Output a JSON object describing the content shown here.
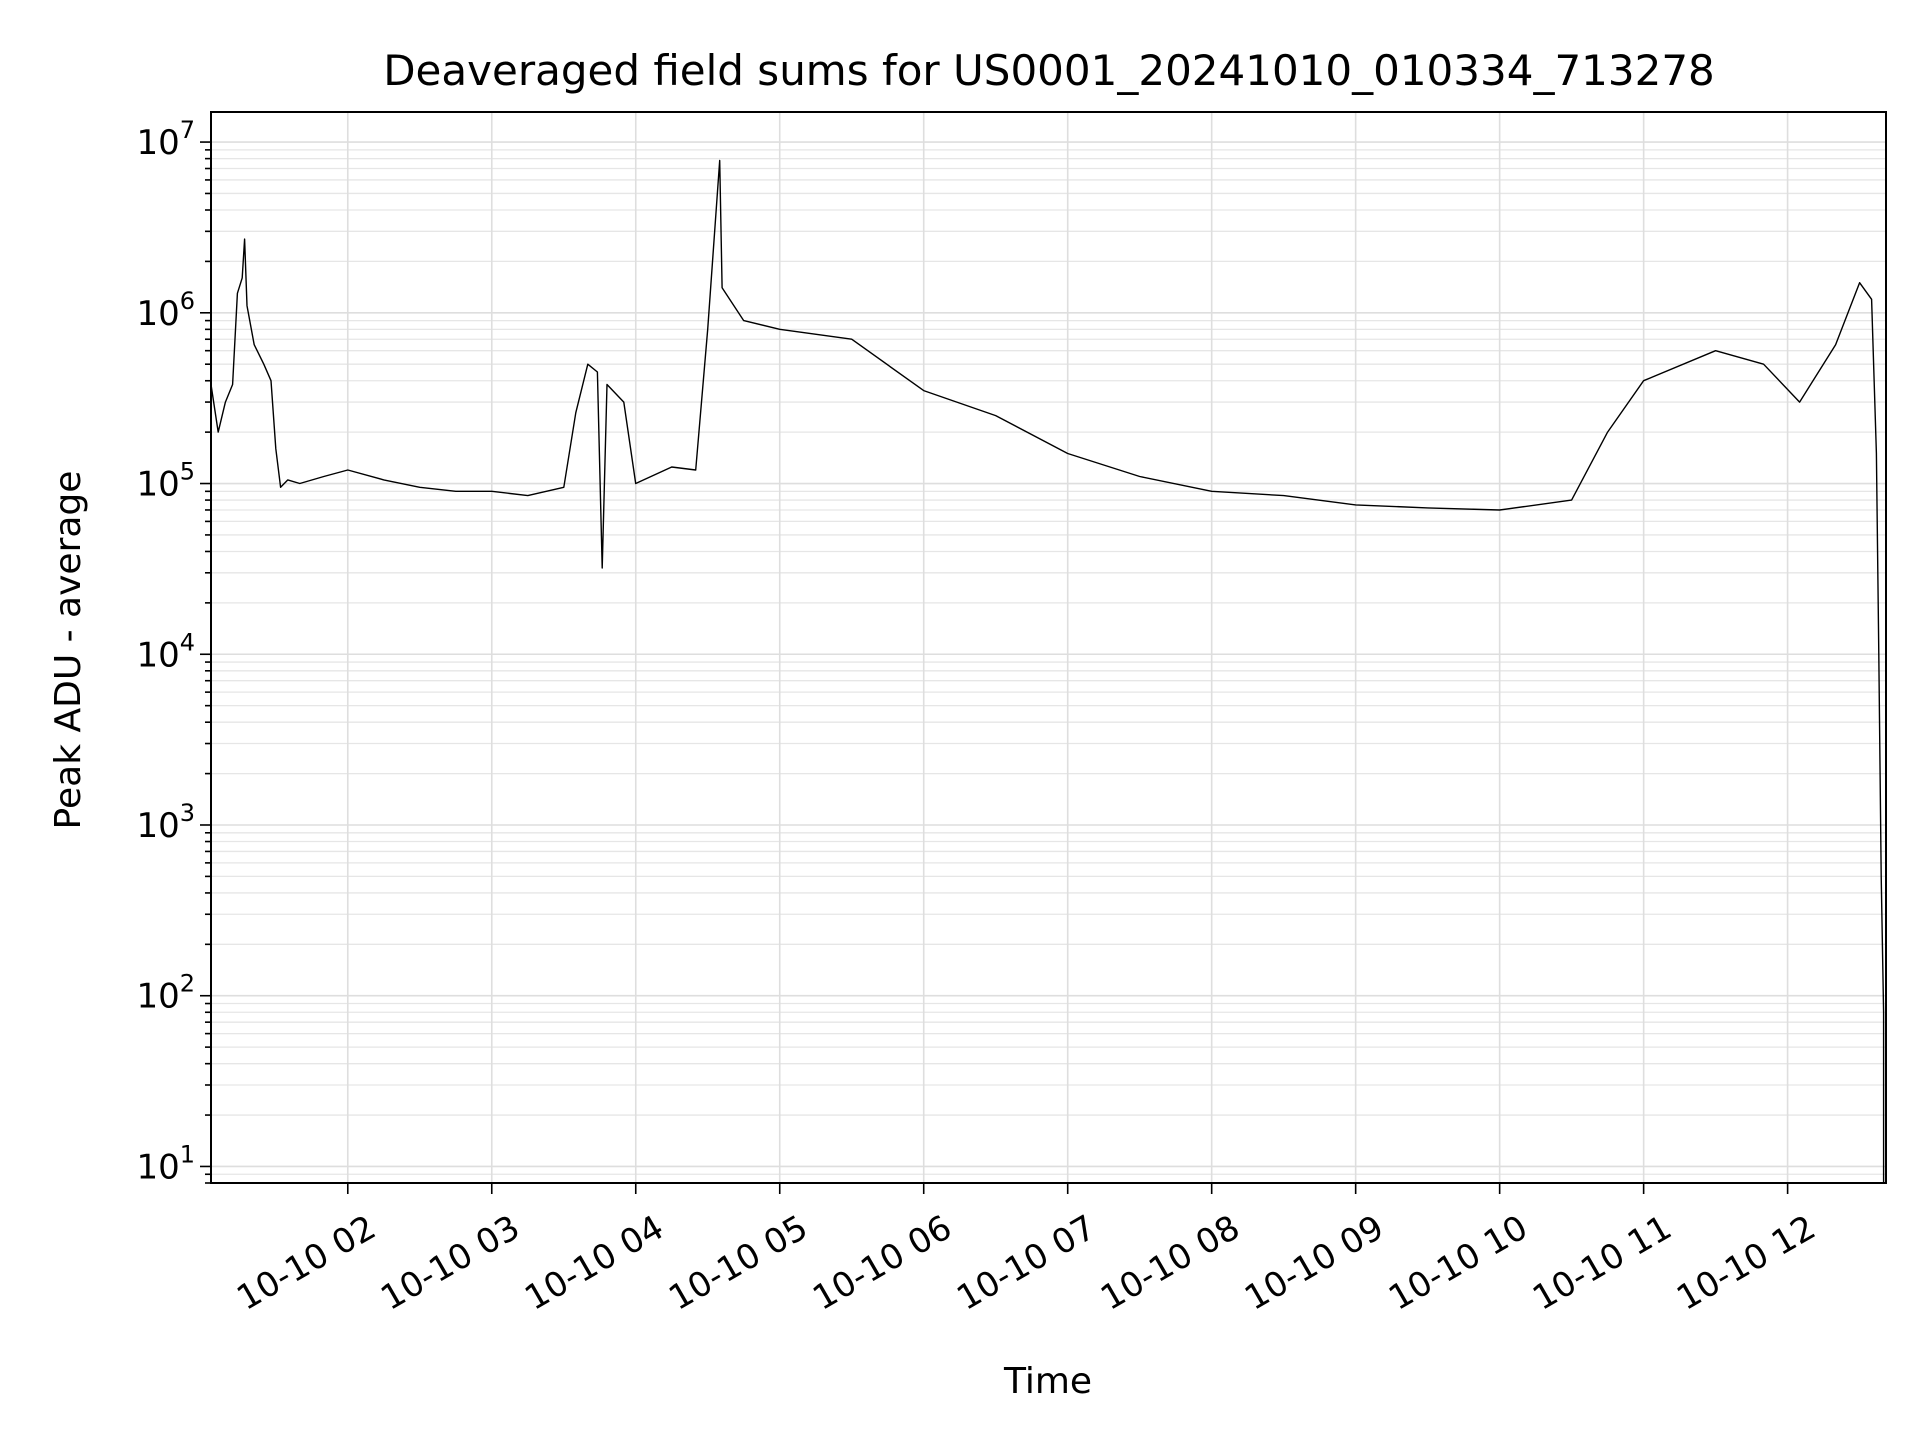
{
  "chart_data": {
    "type": "line",
    "title": "Deaveraged field sums for US0001_20241010_010334_713278",
    "xlabel": "Time",
    "ylabel": "Peak ADU - average",
    "yscale": "log",
    "xlim": [
      "2024-10-10 01:03",
      "2024-10-10 12:41"
    ],
    "ylim": [
      8,
      15000000
    ],
    "grid": true,
    "line_color": "#000000",
    "x_ticks": [
      {
        "label": "10-10 02",
        "value": "2024-10-10 02:00"
      },
      {
        "label": "10-10 03",
        "value": "2024-10-10 03:00"
      },
      {
        "label": "10-10 04",
        "value": "2024-10-10 04:00"
      },
      {
        "label": "10-10 05",
        "value": "2024-10-10 05:00"
      },
      {
        "label": "10-10 06",
        "value": "2024-10-10 06:00"
      },
      {
        "label": "10-10 07",
        "value": "2024-10-10 07:00"
      },
      {
        "label": "10-10 08",
        "value": "2024-10-10 08:00"
      },
      {
        "label": "10-10 09",
        "value": "2024-10-10 09:00"
      },
      {
        "label": "10-10 10",
        "value": "2024-10-10 10:00"
      },
      {
        "label": "10-10 11",
        "value": "2024-10-10 11:00"
      },
      {
        "label": "10-10 12",
        "value": "2024-10-10 12:00"
      }
    ],
    "y_ticks": [
      {
        "base": "10",
        "exp": "1",
        "value": 10
      },
      {
        "base": "10",
        "exp": "2",
        "value": 100
      },
      {
        "base": "10",
        "exp": "3",
        "value": 1000
      },
      {
        "base": "10",
        "exp": "4",
        "value": 10000
      },
      {
        "base": "10",
        "exp": "5",
        "value": 100000
      },
      {
        "base": "10",
        "exp": "6",
        "value": 1000000
      },
      {
        "base": "10",
        "exp": "7",
        "value": 10000000
      }
    ],
    "series": [
      {
        "points": [
          [
            "2024-10-10 01:03",
            380000
          ],
          [
            "2024-10-10 01:06",
            200000
          ],
          [
            "2024-10-10 01:09",
            300000
          ],
          [
            "2024-10-10 01:12",
            380000
          ],
          [
            "2024-10-10 01:14",
            1300000
          ],
          [
            "2024-10-10 01:16",
            1600000
          ],
          [
            "2024-10-10 01:17",
            2700000
          ],
          [
            "2024-10-10 01:18",
            1100000
          ],
          [
            "2024-10-10 01:21",
            650000
          ],
          [
            "2024-10-10 01:25",
            500000
          ],
          [
            "2024-10-10 01:28",
            400000
          ],
          [
            "2024-10-10 01:30",
            160000
          ],
          [
            "2024-10-10 01:32",
            95000
          ],
          [
            "2024-10-10 01:35",
            105000
          ],
          [
            "2024-10-10 01:40",
            100000
          ],
          [
            "2024-10-10 01:50",
            110000
          ],
          [
            "2024-10-10 02:00",
            120000
          ],
          [
            "2024-10-10 02:15",
            105000
          ],
          [
            "2024-10-10 02:30",
            95000
          ],
          [
            "2024-10-10 02:45",
            90000
          ],
          [
            "2024-10-10 03:00",
            90000
          ],
          [
            "2024-10-10 03:15",
            85000
          ],
          [
            "2024-10-10 03:30",
            95000
          ],
          [
            "2024-10-10 03:35",
            260000
          ],
          [
            "2024-10-10 03:40",
            500000
          ],
          [
            "2024-10-10 03:44",
            450000
          ],
          [
            "2024-10-10 03:46",
            32000
          ],
          [
            "2024-10-10 03:48",
            380000
          ],
          [
            "2024-10-10 03:55",
            300000
          ],
          [
            "2024-10-10 04:00",
            100000
          ],
          [
            "2024-10-10 04:15",
            125000
          ],
          [
            "2024-10-10 04:25",
            120000
          ],
          [
            "2024-10-10 04:30",
            800000
          ],
          [
            "2024-10-10 04:35",
            7800000
          ],
          [
            "2024-10-10 04:36",
            1400000
          ],
          [
            "2024-10-10 04:45",
            900000
          ],
          [
            "2024-10-10 05:00",
            800000
          ],
          [
            "2024-10-10 05:30",
            700000
          ],
          [
            "2024-10-10 06:00",
            350000
          ],
          [
            "2024-10-10 06:30",
            250000
          ],
          [
            "2024-10-10 07:00",
            150000
          ],
          [
            "2024-10-10 07:30",
            110000
          ],
          [
            "2024-10-10 08:00",
            90000
          ],
          [
            "2024-10-10 08:30",
            85000
          ],
          [
            "2024-10-10 09:00",
            75000
          ],
          [
            "2024-10-10 09:30",
            72000
          ],
          [
            "2024-10-10 10:00",
            70000
          ],
          [
            "2024-10-10 10:30",
            80000
          ],
          [
            "2024-10-10 10:45",
            200000
          ],
          [
            "2024-10-10 11:00",
            400000
          ],
          [
            "2024-10-10 11:30",
            600000
          ],
          [
            "2024-10-10 11:50",
            500000
          ],
          [
            "2024-10-10 12:05",
            300000
          ],
          [
            "2024-10-10 12:20",
            650000
          ],
          [
            "2024-10-10 12:30",
            1500000
          ],
          [
            "2024-10-10 12:35",
            1200000
          ],
          [
            "2024-10-10 12:37",
            150000
          ],
          [
            "2024-10-10 12:38",
            10000
          ],
          [
            "2024-10-10 12:39",
            500
          ],
          [
            "2024-10-10 12:40",
            80
          ],
          [
            "2024-10-10 12:40",
            8
          ]
        ]
      }
    ]
  }
}
